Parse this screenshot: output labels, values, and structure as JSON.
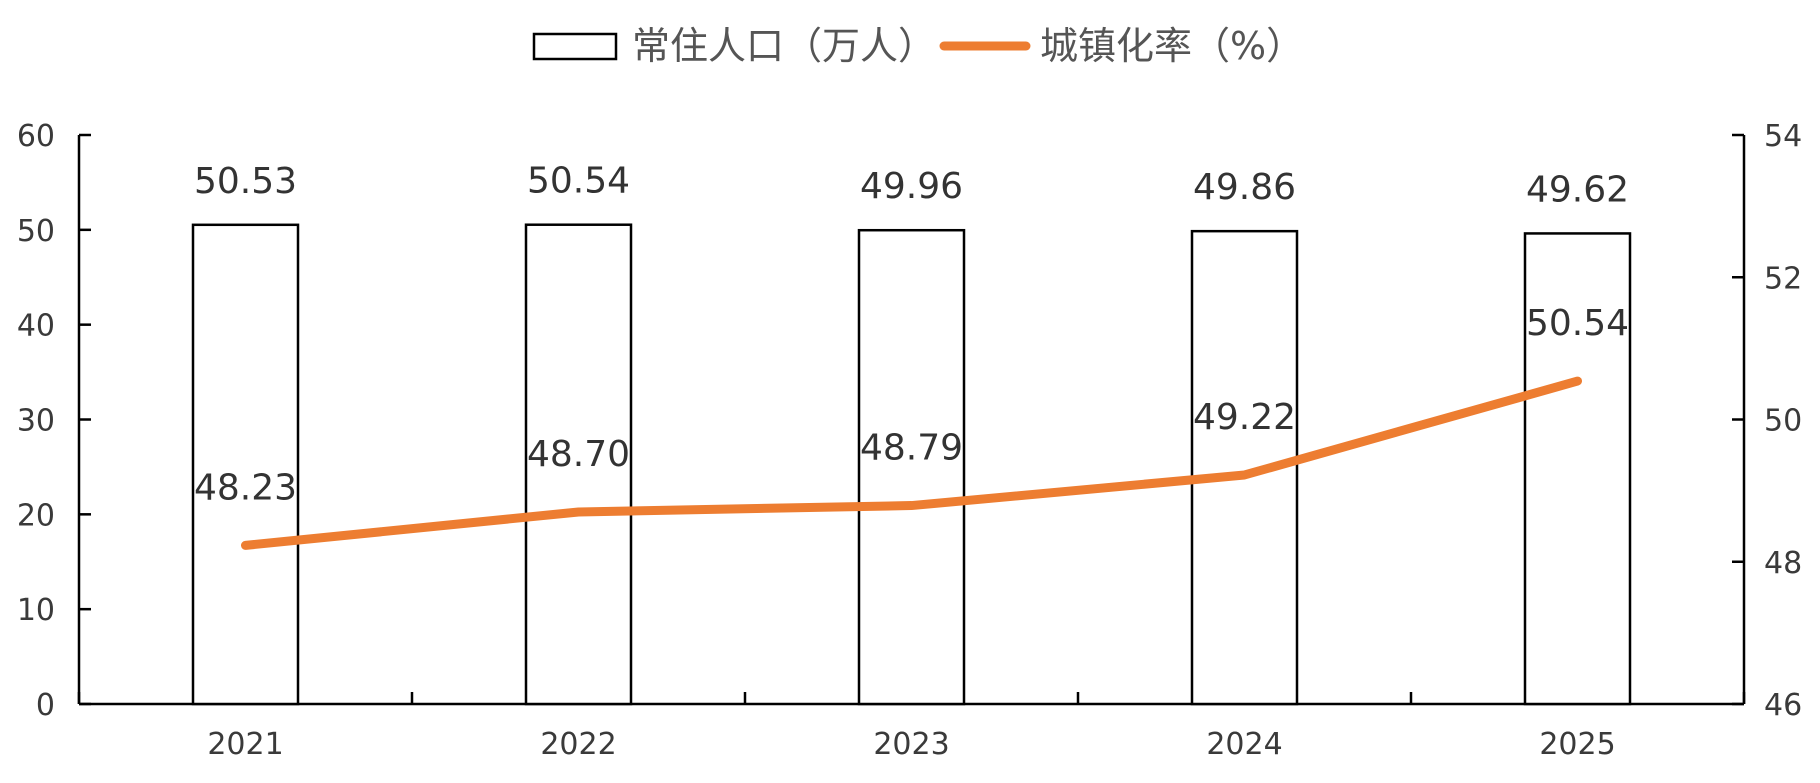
{
  "legend": {
    "bar_label": "常住人口（万人）",
    "line_label": "城镇化率（%）"
  },
  "colors": {
    "bar_fill": "#ffffff",
    "bar_stroke": "#000000",
    "line": "#ed7d31",
    "axis": "#000000"
  },
  "chart_data": {
    "type": "bar",
    "categories": [
      "2021",
      "2022",
      "2023",
      "2024",
      "2025"
    ],
    "series": [
      {
        "name": "常住人口（万人）",
        "type": "bar",
        "axis": "left",
        "values": [
          50.53,
          50.54,
          49.96,
          49.86,
          49.62
        ]
      },
      {
        "name": "城镇化率（%）",
        "type": "line",
        "axis": "right",
        "values": [
          48.23,
          48.7,
          48.79,
          49.22,
          50.54
        ]
      }
    ],
    "data_labels": {
      "bar": [
        "50.53",
        "50.54",
        "49.96",
        "49.86",
        "49.62"
      ],
      "line": [
        "48.23",
        "48.70",
        "48.79",
        "49.22",
        "50.54"
      ]
    },
    "y_left": {
      "min": 0,
      "max": 60,
      "ticks": [
        0,
        10,
        20,
        30,
        40,
        50,
        60
      ]
    },
    "y_right": {
      "min": 46,
      "max": 54,
      "ticks": [
        46,
        48,
        50,
        52,
        54
      ]
    },
    "legend_position": "top-center",
    "grid": false
  }
}
